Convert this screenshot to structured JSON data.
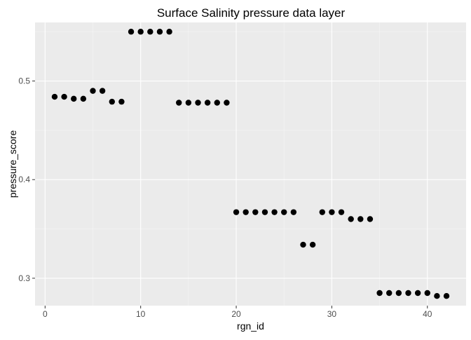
{
  "chart_data": {
    "type": "scatter",
    "title": "Surface Salinity pressure data layer",
    "xlabel": "rgn_id",
    "ylabel": "pressure_score",
    "xlim": [
      -1.05,
      44.05
    ],
    "ylim": [
      0.2722,
      0.5594
    ],
    "xticks": [
      0,
      10,
      20,
      30,
      40
    ],
    "yticks": [
      0.3,
      0.4,
      0.5
    ],
    "xtick_labels": [
      "0",
      "10",
      "20",
      "30",
      "40"
    ],
    "ytick_labels": [
      "0.3",
      "0.4",
      "0.5"
    ],
    "grid": true,
    "legend": "none",
    "colors": {
      "panel_background": "#ebebeb",
      "grid_major": "#ffffff",
      "grid_minor": "#f5f5f5",
      "point": "#000000",
      "tick": "#333333"
    },
    "x": [
      1,
      2,
      3,
      4,
      5,
      6,
      7,
      8,
      9,
      10,
      11,
      12,
      13,
      14,
      15,
      16,
      17,
      18,
      19,
      20,
      21,
      22,
      23,
      24,
      25,
      26,
      27,
      28,
      29,
      30,
      31,
      32,
      33,
      34,
      35,
      36,
      37,
      38,
      39,
      40,
      41,
      42
    ],
    "y": [
      0.484,
      0.484,
      0.482,
      0.482,
      0.49,
      0.49,
      0.479,
      0.479,
      0.55,
      0.55,
      0.55,
      0.55,
      0.55,
      0.478,
      0.478,
      0.478,
      0.478,
      0.478,
      0.478,
      0.367,
      0.367,
      0.367,
      0.367,
      0.367,
      0.367,
      0.367,
      0.334,
      0.334,
      0.367,
      0.367,
      0.367,
      0.36,
      0.36,
      0.36,
      0.285,
      0.285,
      0.285,
      0.285,
      0.285,
      0.285,
      0.282,
      0.282
    ]
  }
}
